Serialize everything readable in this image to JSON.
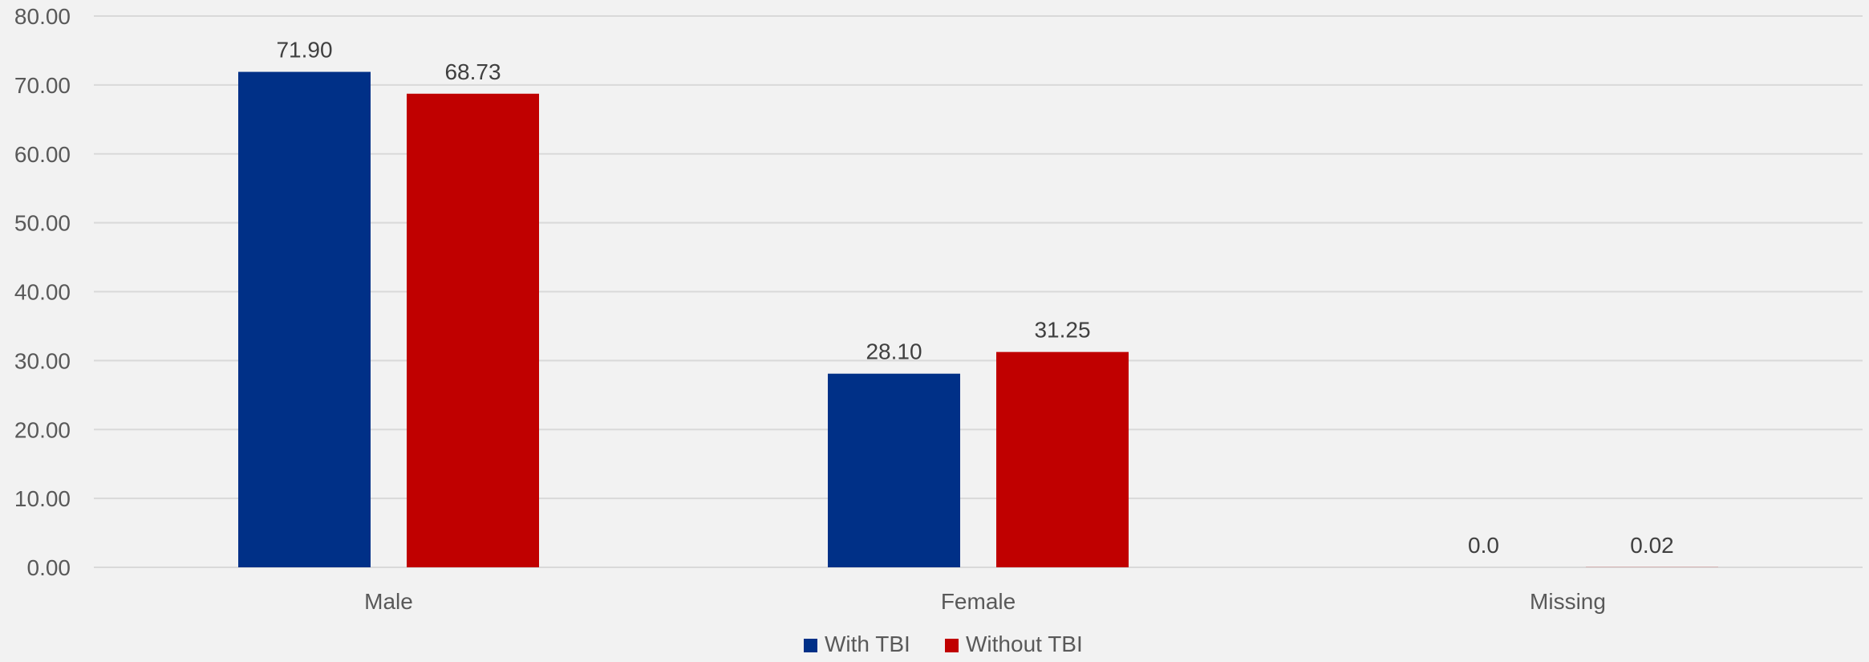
{
  "chart_data": {
    "type": "bar",
    "categories": [
      "Male",
      "Female",
      "Missing"
    ],
    "series": [
      {
        "name": "With TBI",
        "values": [
          71.9,
          28.1,
          0.0
        ],
        "labels": [
          "71.90",
          "28.10",
          "0.0"
        ],
        "color": "#003087"
      },
      {
        "name": "Without TBI",
        "values": [
          68.73,
          31.25,
          0.02
        ],
        "labels": [
          "68.73",
          "31.25",
          "0.02"
        ],
        "color": "#c00000"
      }
    ],
    "yticks": [
      0,
      10,
      20,
      30,
      40,
      50,
      60,
      70,
      80
    ],
    "ytick_labels": [
      "0.00",
      "10.00",
      "20.00",
      "30.00",
      "40.00",
      "50.00",
      "60.00",
      "70.00",
      "80.00"
    ],
    "ylim": [
      0,
      80
    ],
    "title": "",
    "xlabel": "",
    "ylabel": "",
    "grid": true,
    "legend_position": "bottom-center",
    "gridline_color": "#d9d9d9",
    "background_color": "#f2f2f2"
  }
}
